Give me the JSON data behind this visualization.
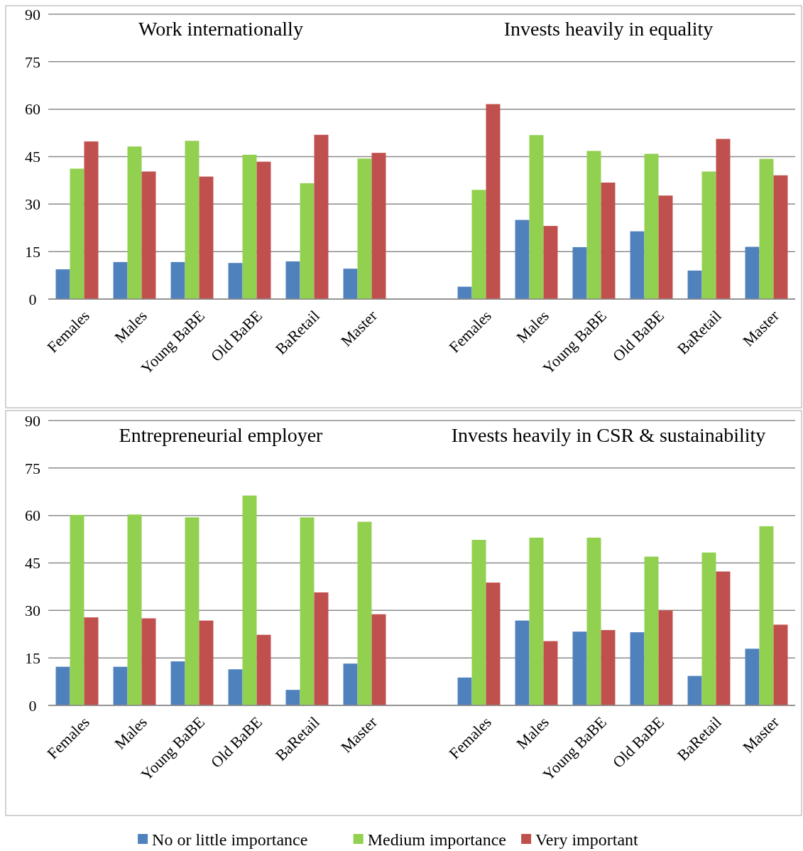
{
  "chart_data": [
    {
      "type": "bar",
      "title": "Work internationally",
      "categories": [
        "Females",
        "Males",
        "Young BaBE",
        "Old BaBE",
        "BaRetail",
        "Master"
      ],
      "series": [
        {
          "name": "No or little importance",
          "color": "#4f81bd",
          "values": [
            9.4,
            11.7,
            11.7,
            11.4,
            11.9,
            9.6
          ]
        },
        {
          "name": "Medium importance",
          "color": "#92d050",
          "values": [
            41.2,
            48.2,
            50.0,
            45.6,
            36.6,
            44.4
          ]
        },
        {
          "name": "Very important",
          "color": "#c0504d",
          "values": [
            49.8,
            40.3,
            38.7,
            43.4,
            51.9,
            46.2
          ]
        }
      ],
      "ylim": [
        0,
        90
      ],
      "yticks": [
        0,
        15,
        30,
        45,
        60,
        75,
        90
      ],
      "grid": "y",
      "legend": "bottom"
    },
    {
      "type": "bar",
      "title": "Invests heavily in equality",
      "categories": [
        "Females",
        "Males",
        "Young BaBE",
        "Old BaBE",
        "BaRetail",
        "Master"
      ],
      "series": [
        {
          "color": "#4f81bd",
          "values": [
            3.9,
            25.0,
            16.4,
            21.4,
            9.0,
            16.5
          ]
        },
        {
          "color": "#92d050",
          "values": [
            34.5,
            51.8,
            46.8,
            45.9,
            40.3,
            44.3
          ]
        },
        {
          "color": "#c0504d",
          "values": [
            61.6,
            23.1,
            36.8,
            32.7,
            50.6,
            39.1
          ]
        }
      ],
      "ylim": [
        0,
        90
      ],
      "yticks": [
        0,
        15,
        30,
        45,
        60,
        75,
        90
      ],
      "grid": "y",
      "tick_labels": "x"
    },
    {
      "type": "bar",
      "title": "Entrepreneurial employer",
      "categories": [
        "Females",
        "Males",
        "Young BaBE",
        "Old BaBE",
        "BaRetail",
        "Master"
      ],
      "series": [
        {
          "color": "#4f81bd",
          "values": [
            12.2,
            12.2,
            13.9,
            11.4,
            4.9,
            13.2
          ]
        },
        {
          "color": "#92d050",
          "values": [
            60.2,
            60.3,
            59.4,
            66.3,
            59.4,
            58.0
          ]
        },
        {
          "color": "#c0504d",
          "values": [
            27.8,
            27.5,
            26.8,
            22.3,
            35.7,
            28.8
          ]
        }
      ],
      "ylim": [
        0,
        90
      ],
      "yticks": [
        0,
        15,
        30,
        45,
        60,
        75,
        90
      ],
      "grid": "y"
    },
    {
      "type": "bar",
      "title": "Invests heavily in CSR & sustainability",
      "categories": [
        "Females",
        "Males",
        "Young BaBE",
        "Old BaBE",
        "BaRetail",
        "Master"
      ],
      "series": [
        {
          "color": "#4f81bd",
          "values": [
            8.8,
            26.8,
            23.3,
            23.1,
            9.3,
            17.9
          ]
        },
        {
          "color": "#92d050",
          "values": [
            52.3,
            53.0,
            53.0,
            47.0,
            48.3,
            56.6
          ]
        },
        {
          "color": "#c0504d",
          "values": [
            38.8,
            20.3,
            23.8,
            30.0,
            42.3,
            25.5
          ]
        }
      ],
      "ylim": [
        0,
        90
      ],
      "yticks": [
        0,
        15,
        30,
        45,
        60,
        75,
        90
      ],
      "grid": "y",
      "tick_labels": "x"
    }
  ]
}
